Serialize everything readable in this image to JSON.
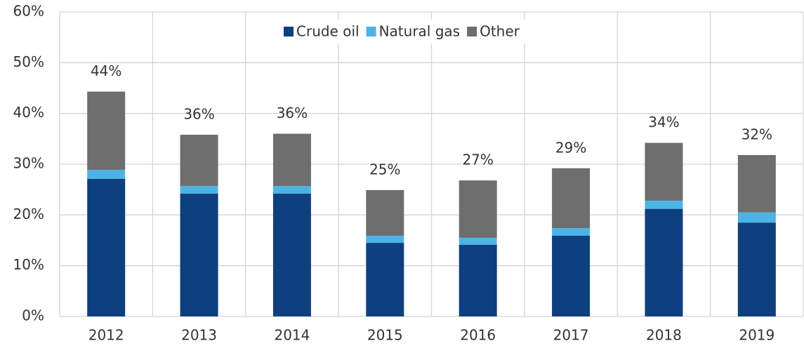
{
  "chart_data": {
    "type": "stacked_bar",
    "categories": [
      "2012",
      "2013",
      "2014",
      "2015",
      "2016",
      "2017",
      "2018",
      "2019"
    ],
    "series": [
      {
        "name": "Crude oil",
        "color": "#0e3f7e",
        "values": [
          27.1,
          24.2,
          24.2,
          14.5,
          14.1,
          15.9,
          21.2,
          18.5
        ]
      },
      {
        "name": "Natural gas",
        "color": "#4db3e6",
        "values": [
          1.8,
          1.5,
          1.5,
          1.4,
          1.4,
          1.5,
          1.6,
          2.0
        ]
      },
      {
        "name": "Other",
        "color": "#6e6e6e",
        "values": [
          15.4,
          10.1,
          10.3,
          9.0,
          11.3,
          11.8,
          11.4,
          11.3
        ]
      }
    ],
    "totals": [
      44,
      36,
      36,
      25,
      27,
      29,
      34,
      32
    ],
    "total_labels": [
      "44%",
      "36%",
      "36%",
      "25%",
      "27%",
      "29%",
      "34%",
      "32%"
    ],
    "ylim": [
      0,
      60
    ],
    "yticks": [
      {
        "value": 0,
        "label": "0%"
      },
      {
        "value": 10,
        "label": "10%"
      },
      {
        "value": 20,
        "label": "20%"
      },
      {
        "value": 30,
        "label": "30%"
      },
      {
        "value": 40,
        "label": "40%"
      },
      {
        "value": 50,
        "label": "50%"
      },
      {
        "value": 60,
        "label": "60%"
      }
    ],
    "grid": true,
    "legend": "top"
  }
}
